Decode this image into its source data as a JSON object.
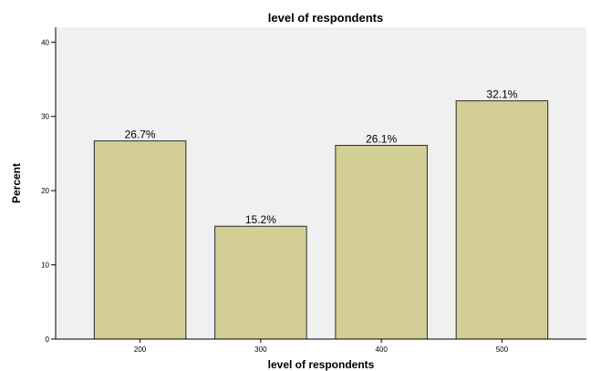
{
  "chart_data": {
    "type": "bar",
    "title": "level of respondents",
    "xlabel": "level of respondents",
    "ylabel": "Percent",
    "categories": [
      "200",
      "300",
      "400",
      "500"
    ],
    "values": [
      26.7,
      15.2,
      26.1,
      32.1
    ],
    "data_labels": [
      "26.7%",
      "15.2%",
      "26.1%",
      "32.1%"
    ],
    "ylim": [
      0,
      42
    ],
    "yticks": [
      0,
      10,
      20,
      30,
      40
    ],
    "ytick_labels": [
      "0",
      "10",
      "20",
      "30",
      "40"
    ],
    "grid": false,
    "legend": "none",
    "colors": {
      "bar_fill": "#d3ce96",
      "bar_stroke": "#2a2a2a",
      "plot_background": "#f0f0f0",
      "axis": "#000000"
    }
  }
}
